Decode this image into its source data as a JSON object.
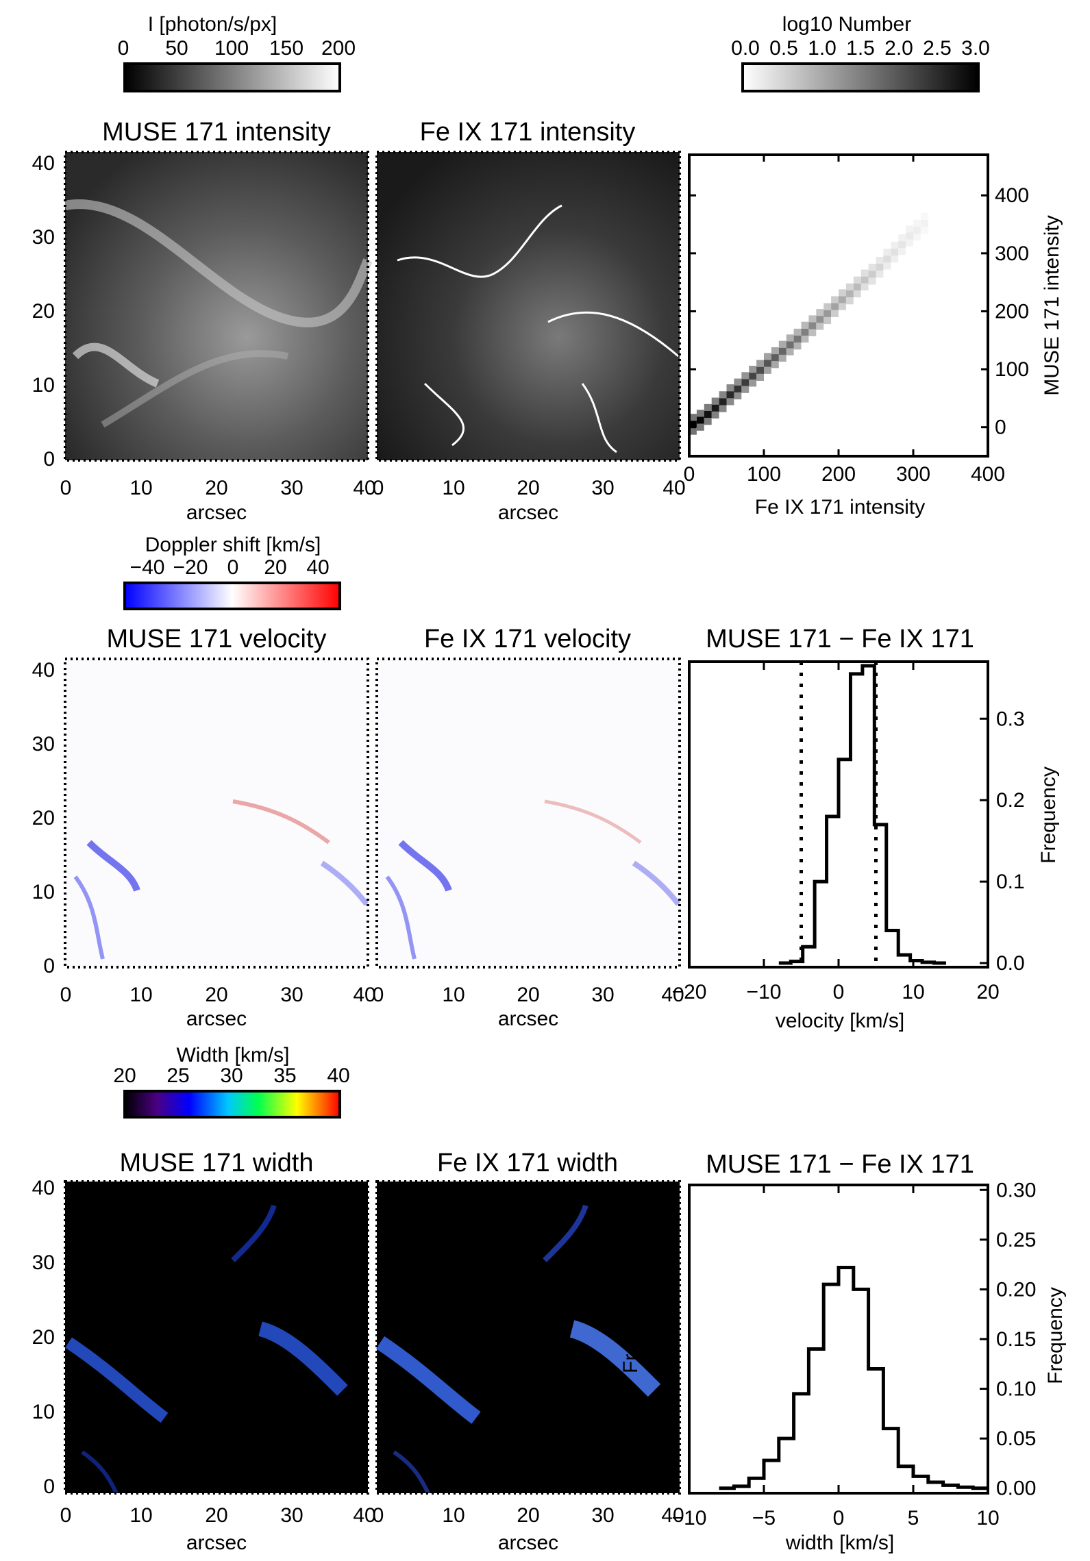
{
  "colorbars": {
    "intensity": {
      "title": "I [photon/s/px]",
      "ticks": [
        "0",
        "50",
        "100",
        "150",
        "200"
      ],
      "colors": [
        "#000000",
        "#ffffff"
      ]
    },
    "lognumber": {
      "title": "log10 Number",
      "ticks": [
        "0.0",
        "0.5",
        "1.0",
        "1.5",
        "2.0",
        "2.5",
        "3.0"
      ],
      "colors": [
        "#ffffff",
        "#000000"
      ]
    },
    "doppler": {
      "title": "Doppler shift [km/s]",
      "ticks": [
        "−40",
        "−20",
        "0",
        "20",
        "40"
      ],
      "colors": [
        "#0000ff",
        "#ffffff",
        "#ff0000"
      ]
    },
    "width": {
      "title": "Width [km/s]",
      "ticks": [
        "20",
        "25",
        "30",
        "35",
        "40"
      ],
      "colors": [
        "#000000",
        "#5a007f",
        "#0000ff",
        "#00c8ff",
        "#00ff50",
        "#ffff00",
        "#ff0000"
      ]
    }
  },
  "row1": {
    "map1_title": "MUSE 171 intensity",
    "map2_title": "Fe IX 171 intensity",
    "map_xlabel": "arcsec",
    "map_xticks": [
      "0",
      "10",
      "20",
      "30",
      "40"
    ],
    "map_yticks": [
      "0",
      "10",
      "20",
      "30",
      "40"
    ]
  },
  "row2": {
    "map1_title": "MUSE 171 velocity",
    "map2_title": "Fe IX 171 velocity",
    "map_xlabel": "arcsec",
    "hist_title": "MUSE 171 − Fe IX 171"
  },
  "row3": {
    "map1_title": "MUSE 171 width",
    "map2_title": "Fe IX 171 width",
    "map_xlabel": "arcsec",
    "hist_title": "MUSE 171 − Fe IX 171",
    "stray_label": "Fre"
  },
  "chart_data": [
    {
      "type": "heatmap",
      "title": "",
      "xlabel": "Fe IX 171 intensity",
      "ylabel": "MUSE 171 intensity",
      "xlim": [
        0,
        400
      ],
      "ylim": [
        -50,
        470
      ],
      "xticks": [
        "0",
        "100",
        "200",
        "300",
        "400"
      ],
      "yticks": [
        "0",
        "100",
        "200",
        "300",
        "400"
      ],
      "diagonal_density": [
        {
          "x": 5,
          "y": 5,
          "lognum": 3.0
        },
        {
          "x": 15,
          "y": 12,
          "lognum": 2.9
        },
        {
          "x": 25,
          "y": 22,
          "lognum": 2.8
        },
        {
          "x": 35,
          "y": 33,
          "lognum": 2.7
        },
        {
          "x": 45,
          "y": 44,
          "lognum": 2.6
        },
        {
          "x": 55,
          "y": 56,
          "lognum": 2.5
        },
        {
          "x": 65,
          "y": 66,
          "lognum": 2.4
        },
        {
          "x": 75,
          "y": 77,
          "lognum": 2.3
        },
        {
          "x": 85,
          "y": 88,
          "lognum": 2.2
        },
        {
          "x": 95,
          "y": 98,
          "lognum": 2.1
        },
        {
          "x": 105,
          "y": 110,
          "lognum": 2.0
        },
        {
          "x": 115,
          "y": 120,
          "lognum": 1.9
        },
        {
          "x": 125,
          "y": 131,
          "lognum": 1.8
        },
        {
          "x": 135,
          "y": 142,
          "lognum": 1.7
        },
        {
          "x": 145,
          "y": 152,
          "lognum": 1.6
        },
        {
          "x": 155,
          "y": 164,
          "lognum": 1.5
        },
        {
          "x": 165,
          "y": 175,
          "lognum": 1.4
        },
        {
          "x": 175,
          "y": 186,
          "lognum": 1.3
        },
        {
          "x": 185,
          "y": 196,
          "lognum": 1.2
        },
        {
          "x": 195,
          "y": 208,
          "lognum": 1.1
        },
        {
          "x": 205,
          "y": 220,
          "lognum": 1.0
        },
        {
          "x": 215,
          "y": 230,
          "lognum": 0.9
        },
        {
          "x": 225,
          "y": 242,
          "lognum": 0.8
        },
        {
          "x": 235,
          "y": 254,
          "lognum": 0.7
        },
        {
          "x": 245,
          "y": 264,
          "lognum": 0.6
        },
        {
          "x": 255,
          "y": 276,
          "lognum": 0.5
        },
        {
          "x": 265,
          "y": 290,
          "lognum": 0.4
        },
        {
          "x": 275,
          "y": 302,
          "lognum": 0.35
        },
        {
          "x": 285,
          "y": 315,
          "lognum": 0.3
        },
        {
          "x": 295,
          "y": 330,
          "lognum": 0.25
        },
        {
          "x": 305,
          "y": 340,
          "lognum": 0.2
        },
        {
          "x": 315,
          "y": 352,
          "lognum": 0.15
        }
      ]
    },
    {
      "type": "bar",
      "title": "MUSE 171 − Fe IX 171",
      "xlabel": "velocity [km/s]",
      "ylabel": "Frequency",
      "xlim": [
        -20,
        20
      ],
      "ylim": [
        -0.005,
        0.37
      ],
      "xticks": [
        "−20",
        "−10",
        "0",
        "10",
        "20"
      ],
      "yticks": [
        "0.0",
        "0.1",
        "0.2",
        "0.3"
      ],
      "bin_width": 1.6,
      "bin_edges_start": -8.0,
      "values": [
        0.0,
        0.002,
        0.02,
        0.1,
        0.18,
        0.25,
        0.355,
        0.365,
        0.17,
        0.04,
        0.01,
        0.003,
        0.001,
        0.0
      ],
      "reference_lines": [
        -5,
        5
      ]
    },
    {
      "type": "bar",
      "title": "MUSE 171 − Fe IX 171",
      "xlabel": "width [km/s]",
      "ylabel": "Frequency",
      "xlim": [
        -10,
        10
      ],
      "ylim": [
        -0.005,
        0.305
      ],
      "xticks": [
        "−10",
        "−5",
        "0",
        "5",
        "10"
      ],
      "yticks": [
        "0.00",
        "0.05",
        "0.10",
        "0.15",
        "0.20",
        "0.25",
        "0.30"
      ],
      "bin_width": 1.0,
      "bin_edges_start": -8.0,
      "values": [
        0.0,
        0.002,
        0.01,
        0.028,
        0.05,
        0.095,
        0.14,
        0.205,
        0.222,
        0.2,
        0.12,
        0.06,
        0.022,
        0.012,
        0.006,
        0.003,
        0.001,
        0.0
      ]
    }
  ]
}
